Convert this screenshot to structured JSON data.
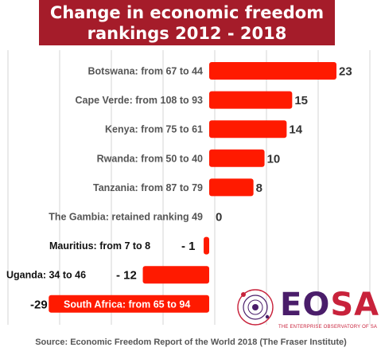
{
  "chart_data": {
    "type": "bar",
    "title": "Change in economic freedom rankings 2012 - 2018",
    "categories": [
      "Botswana:  from 67 to 44",
      "Cape Verde: from 108 to 93",
      "Kenya:  from 75 to 61",
      "Rwanda: from 50 to 40",
      "Tanzania:  from 87 to 79",
      "The Gambia:  retained ranking 49",
      "Mauritius: from 7 to 8",
      "Uganda: 34 to 46",
      "South Africa: from 65 to 94"
    ],
    "values": [
      23,
      15,
      14,
      10,
      8,
      0,
      -1,
      -12,
      -29
    ],
    "value_labels": [
      "23",
      "15",
      "14",
      "10",
      "8",
      "0",
      "- 1",
      "- 12",
      "-29"
    ],
    "bar_color": "#ff1a00",
    "grid": true,
    "orientation": "horizontal"
  },
  "logo": {
    "name": "EOSA",
    "eo": "EO",
    "sa": "SA",
    "tagline": "THE ENTERPRISE OBSERVATORY OF SA"
  },
  "source": "Source:  Economic Freedom Report of the World 2018 (The Fraser Institute)",
  "colors": {
    "title_bg": "#a51c2a",
    "bar": "#ff1a00",
    "logo_purple": "#4a1d6a",
    "logo_red": "#c8223b"
  }
}
